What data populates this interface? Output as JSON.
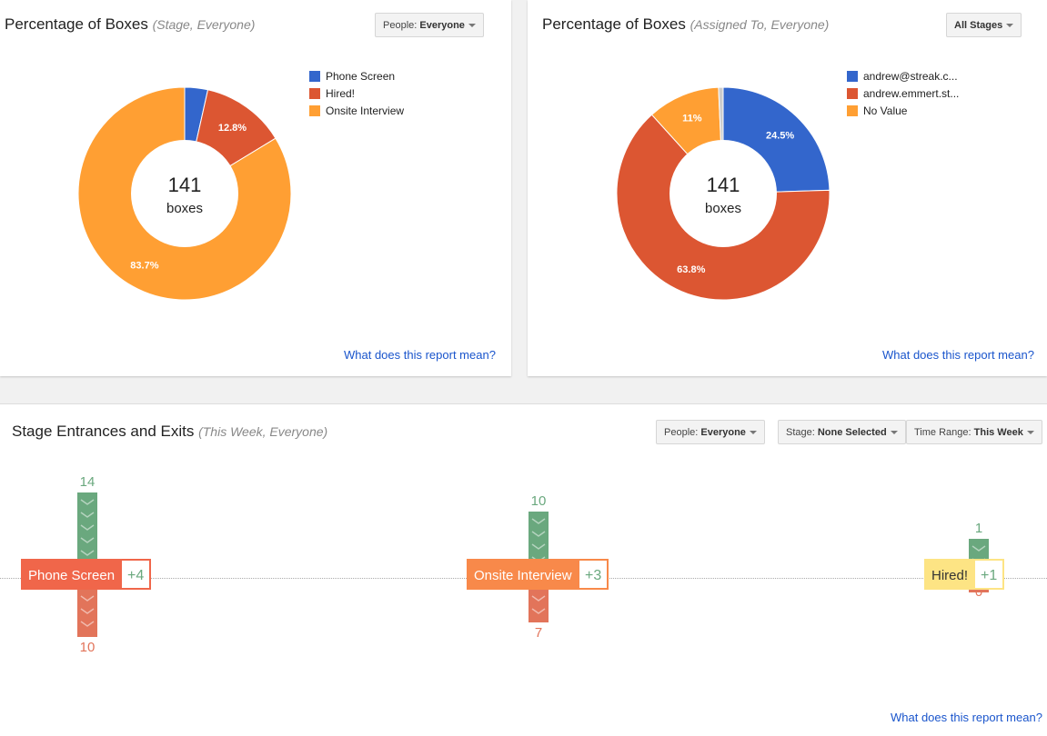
{
  "panel1": {
    "title": "Percentage of Boxes",
    "subtitle": "(Stage, Everyone)",
    "filter_label": "People: ",
    "filter_value": "Everyone",
    "link": "What does this report mean?",
    "center_value": "141",
    "center_unit": "boxes"
  },
  "panel2": {
    "title": "Percentage of Boxes",
    "subtitle": "(Assigned To, Everyone)",
    "filter_value": "All Stages",
    "link": "What does this report mean?",
    "center_value": "141",
    "center_unit": "boxes"
  },
  "panel3": {
    "title": "Stage Entrances and Exits",
    "subtitle": "(This Week, Everyone)",
    "people_label": "People: ",
    "people_value": "Everyone",
    "stage_label": "Stage: ",
    "stage_value": "None Selected",
    "time_label": "Time Range: ",
    "time_value": "This Week",
    "link": "What does this report mean?"
  },
  "colors": {
    "blue": "#3366cc",
    "red": "#dc5632",
    "orange": "#ff9f33",
    "gray": "#cccccc",
    "green": "#6aa87e",
    "salmon": "#e2745a",
    "phone_screen": "#f0664a",
    "onsite": "#f8894a",
    "hired": "#fde484"
  },
  "chart_data": [
    {
      "type": "pie",
      "title": "Percentage of Boxes (Stage, Everyone)",
      "total": 141,
      "slices": [
        {
          "name": "Phone Screen",
          "value": 3.5,
          "label": "",
          "color": "#3366cc"
        },
        {
          "name": "Hired!",
          "value": 12.8,
          "label": "12.8%",
          "color": "#dc5632"
        },
        {
          "name": "Onsite Interview",
          "value": 83.7,
          "label": "83.7%",
          "color": "#ff9f33"
        }
      ],
      "legend": [
        "Phone Screen",
        "Hired!",
        "Onsite Interview"
      ]
    },
    {
      "type": "pie",
      "title": "Percentage of Boxes (Assigned To, Everyone)",
      "total": 141,
      "slices": [
        {
          "name": "andrew@streak.c...",
          "value": 24.5,
          "label": "24.5%",
          "color": "#3366cc"
        },
        {
          "name": "andrew.emmert.st...",
          "value": 63.8,
          "label": "63.8%",
          "color": "#dc5632"
        },
        {
          "name": "No Value",
          "value": 11,
          "label": "11%",
          "color": "#ff9f33"
        },
        {
          "name": "other",
          "value": 0.7,
          "label": "",
          "color": "#cccccc"
        }
      ],
      "legend": [
        "andrew@streak.c...",
        "andrew.emmert.st...",
        "No Value"
      ]
    },
    {
      "type": "bar",
      "title": "Stage Entrances and Exits (This Week, Everyone)",
      "categories": [
        "Phone Screen",
        "Onsite Interview",
        "Hired!"
      ],
      "series": [
        {
          "name": "Entrances",
          "values": [
            14,
            10,
            1
          ]
        },
        {
          "name": "Exits",
          "values": [
            10,
            7,
            0
          ]
        }
      ],
      "net": [
        "+4",
        "+3",
        "+1"
      ]
    }
  ]
}
